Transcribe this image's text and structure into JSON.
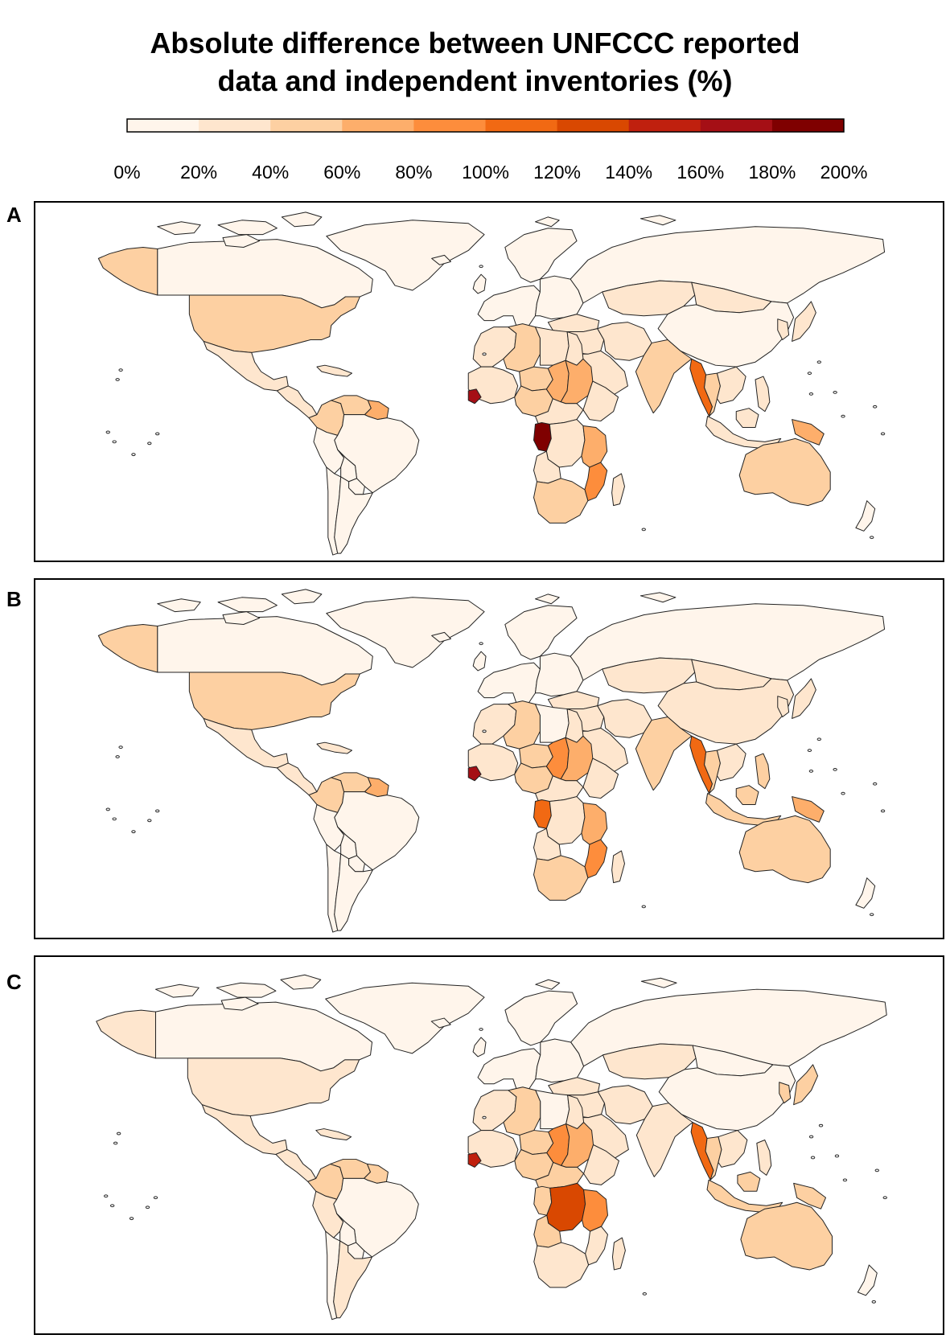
{
  "title": {
    "line1": "Absolute difference between UNFCCC reported",
    "line2": "data and independent inventories (%)"
  },
  "legend": {
    "tick_labels": [
      "0%",
      "20%",
      "40%",
      "60%",
      "80%",
      "100%",
      "120%",
      "140%",
      "160%",
      "180%",
      "200%"
    ],
    "bin_colors": [
      "#fff5eb",
      "#fee6ce",
      "#fdd0a2",
      "#fdae6b",
      "#fd8d3c",
      "#f16913",
      "#d94801",
      "#c0200e",
      "#a50f15",
      "#7f0000"
    ]
  },
  "no_data_color": "#ffffff",
  "panels": [
    {
      "label": "A",
      "values": {
        "canada": 0,
        "greenland": 0,
        "alaska": 2,
        "usa": 2,
        "mexico": 1,
        "caribbean": 1,
        "central_america": 1,
        "colombia": 2,
        "venezuela": 2,
        "guyana": 3,
        "brazil": 0,
        "peru": 0,
        "bolivia": 0,
        "paraguay": 0,
        "argentina": 0,
        "chile": 0,
        "scandinavia": 0,
        "europe_west": 0,
        "europe_east": 0,
        "uk": 0,
        "russia": 0,
        "turkey": 1,
        "north_africa": 1,
        "algeria": 2,
        "libya": 1,
        "egypt": 1,
        "west_africa": 1,
        "sierra_leone": 8,
        "nigeria": 2,
        "niger": 2,
        "chad": 3,
        "sudan": 3,
        "ethiopia": 1,
        "central_africa": 1,
        "congo": 9,
        "drc": 1,
        "tanzania": 3,
        "mozambique": 4,
        "angola": 1,
        "southern_africa": 2,
        "madagascar": 1,
        "arabia": 1,
        "iran": 1,
        "middle_east": 1,
        "kazakhstan": 1,
        "mongolia": 1,
        "china": 0,
        "india": 2,
        "myanmar": 5,
        "thailand": 2,
        "indochina": 1,
        "japan": 1,
        "korea": 1,
        "indonesia": 1,
        "philippines": 1,
        "png": 3,
        "australia": 2,
        "new_zealand": 0
      }
    },
    {
      "label": "B",
      "values": {
        "canada": 0,
        "greenland": 0,
        "alaska": 2,
        "usa": 2,
        "mexico": 1,
        "caribbean": 1,
        "central_america": 1,
        "colombia": 2,
        "venezuela": 2,
        "guyana": 3,
        "brazil": 0,
        "peru": 0,
        "bolivia": 0,
        "paraguay": 0,
        "argentina": 0,
        "chile": 0,
        "scandinavia": 0,
        "europe_west": 0,
        "europe_east": 0,
        "uk": 0,
        "russia": 0,
        "turkey": 1,
        "north_africa": 1,
        "algeria": 2,
        "libya": 0,
        "egypt": 1,
        "west_africa": 1,
        "sierra_leone": 8,
        "nigeria": 2,
        "niger": 2,
        "chad": 4,
        "sudan": 3,
        "ethiopia": 1,
        "central_africa": 1,
        "congo": 5,
        "drc": 1,
        "tanzania": 3,
        "mozambique": 4,
        "angola": 1,
        "southern_africa": 2,
        "madagascar": 1,
        "arabia": 1,
        "iran": 1,
        "middle_east": 1,
        "kazakhstan": 1,
        "mongolia": 1,
        "china": 1,
        "india": 2,
        "myanmar": 5,
        "thailand": 2,
        "indochina": 1,
        "japan": 1,
        "korea": 1,
        "indonesia": 2,
        "philippines": 2,
        "png": 3,
        "australia": 2,
        "new_zealand": 0
      }
    },
    {
      "label": "C",
      "values": {
        "canada": 0,
        "greenland": 0,
        "alaska": 1,
        "usa": 1,
        "mexico": 1,
        "caribbean": 1,
        "central_america": 1,
        "colombia": 2,
        "venezuela": 2,
        "guyana": 2,
        "brazil": 0,
        "peru": 1,
        "bolivia": 0,
        "paraguay": 0,
        "argentina": 1,
        "chile": 0,
        "scandinavia": 0,
        "europe_west": 0,
        "europe_east": 0,
        "uk": 0,
        "russia": 0,
        "turkey": 1,
        "north_africa": 1,
        "algeria": 2,
        "libya": 0,
        "egypt": 1,
        "west_africa": 1,
        "sierra_leone": 7,
        "nigeria": 2,
        "niger": 2,
        "chad": 4,
        "sudan": 3,
        "ethiopia": 1,
        "central_africa": 2,
        "congo": 2,
        "drc": 6,
        "tanzania": 4,
        "mozambique": 1,
        "angola": 2,
        "southern_africa": 1,
        "madagascar": 1,
        "arabia": 1,
        "iran": 1,
        "middle_east": 1,
        "kazakhstan": 1,
        "mongolia": 0,
        "china": 0,
        "india": 1,
        "myanmar": 5,
        "thailand": 2,
        "indochina": 1,
        "japan": 2,
        "korea": 2,
        "indonesia": 2,
        "philippines": 1,
        "png": 2,
        "australia": 2,
        "new_zealand": 0
      }
    }
  ]
}
